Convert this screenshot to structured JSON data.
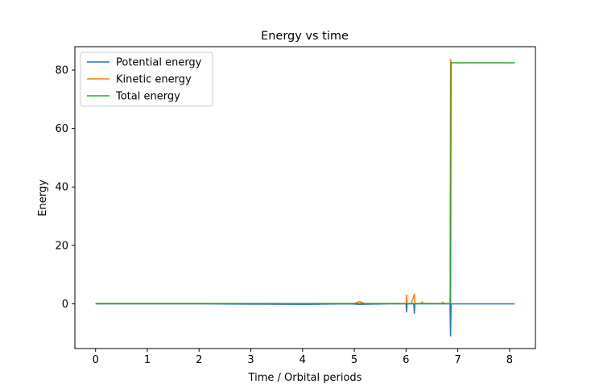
{
  "chart_data": {
    "type": "line",
    "title": "Energy vs time",
    "xlabel": "Time / Orbital periods",
    "ylabel": "Energy",
    "xlim": [
      -0.4,
      8.5
    ],
    "ylim": [
      -15.3,
      88.0
    ],
    "xticks": [
      0,
      1,
      2,
      3,
      4,
      5,
      6,
      7,
      8
    ],
    "yticks": [
      0,
      20,
      40,
      60,
      80
    ],
    "grid": false,
    "legend": "top-left",
    "series": [
      {
        "name": "Potential energy",
        "color": "#1f77b4",
        "x": [
          0,
          1,
          2,
          2.9,
          3.1,
          4,
          4.9,
          5.1,
          5.7,
          5.8,
          5.9,
          6.0,
          6.01,
          6.02,
          6.1,
          6.15,
          6.16,
          6.17,
          6.3,
          6.5,
          6.6,
          6.7,
          6.85,
          6.86,
          6.87,
          6.88,
          7.0,
          8.1
        ],
        "y": [
          0,
          0,
          0,
          -0.1,
          -0.1,
          -0.2,
          0,
          -0.2,
          0,
          0,
          0,
          0,
          -2.8,
          0,
          0,
          0,
          -3.2,
          0,
          0,
          0,
          0,
          0,
          0,
          -11.0,
          0,
          0,
          0,
          0
        ]
      },
      {
        "name": "Kinetic energy",
        "color": "#ff7f0e",
        "x": [
          0,
          1,
          2,
          3,
          4,
          5,
          5.1,
          5.2,
          5.8,
          5.9,
          6.0,
          6.01,
          6.02,
          6.1,
          6.16,
          6.17,
          6.3,
          6.31,
          6.32,
          6.7,
          6.71,
          6.72,
          6.85,
          6.86,
          6.87,
          6.88
        ],
        "y": [
          0.1,
          0.1,
          0.1,
          0.1,
          0.1,
          0.1,
          0.8,
          0.1,
          0.1,
          0.1,
          0.1,
          3.0,
          0.1,
          0.1,
          3.3,
          0.1,
          0.1,
          0.7,
          0.1,
          0.1,
          0.6,
          0.1,
          0.1,
          83.6,
          82.6,
          82.5
        ]
      },
      {
        "name": "Total energy",
        "color": "#2ca02c",
        "x": [
          0,
          1,
          2,
          3,
          4,
          5,
          6,
          6.85,
          6.86,
          6.87,
          7.0,
          8.1
        ],
        "y": [
          0.1,
          0.1,
          0.1,
          0.1,
          0.1,
          0.1,
          0.1,
          0.1,
          0.1,
          82.5,
          82.5,
          82.5
        ]
      }
    ]
  }
}
